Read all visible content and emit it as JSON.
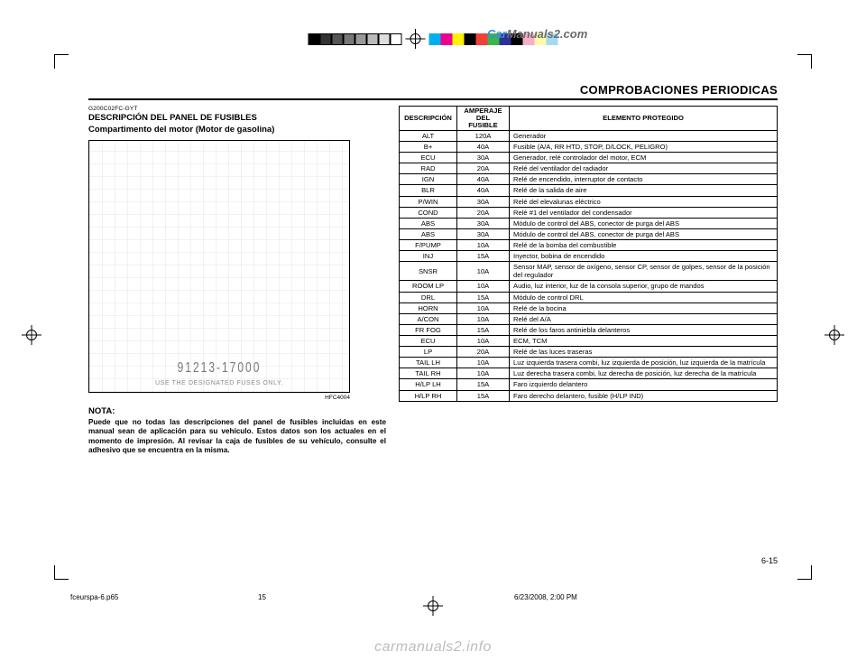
{
  "section_title": "COMPROBACIONES PERIODICAS",
  "code": "G200C02FC-GYT",
  "heading1": "DESCRIPCIÓN DEL PANEL DE FUSIBLES",
  "heading2": "Compartimento del motor (Motor de gasolina)",
  "figure_caption": "HFC4004",
  "diagram": {
    "part_number": "91213-17000",
    "caption": "USE THE DESIGNATED FUSES ONLY."
  },
  "nota_heading": "NOTA:",
  "nota_body": "Puede que no todas las descripciones del panel de fusibles incluidas en este manual sean de aplicación para su vehículo. Estos datos son los actuales en el momento de impresión. Al revisar la caja de fusibles de su vehículo, consulte el adhesivo que se encuentra en la misma.",
  "table": {
    "columns": [
      "DESCRIPCIÓN",
      "AMPERAJE DEL FUSIBLE",
      "ELEMENTO PROTEGIDO"
    ],
    "rows": [
      [
        "ALT",
        "120A",
        "Generador"
      ],
      [
        "B+",
        "40A",
        "Fusible (A/A, RR HTD, STOP, D/LOCK, PELIGRO)"
      ],
      [
        "ECU",
        "30A",
        "Generador, relé controlador del motor, ECM"
      ],
      [
        "RAD",
        "20A",
        "Relé del ventilador del radiador"
      ],
      [
        "IGN",
        "40A",
        "Relé de encendido, interruptor de contacto"
      ],
      [
        "BLR",
        "40A",
        "Relé de la salida de aire"
      ],
      [
        "P/WIN",
        "30A",
        "Relé del elevalunas eléctrico"
      ],
      [
        "COND",
        "20A",
        "Relé #1 del ventilador del condensador"
      ],
      [
        "ABS",
        "30A",
        "Módulo de control del ABS, conector de purga del ABS"
      ],
      [
        "ABS",
        "30A",
        "Módulo de control del ABS, conector de purga del ABS"
      ],
      [
        "F/PUMP",
        "10A",
        "Relé de la bomba del combustible"
      ],
      [
        "INJ",
        "15A",
        "Inyector, bobina de encendido"
      ],
      [
        "SNSR",
        "10A",
        "Sensor MAP, sensor de oxígeno, sensor CP, sensor de golpes, sensor de la posición del regulador"
      ],
      [
        "ROOM LP",
        "10A",
        "Audio, luz interior, luz de la consola superior, grupo de mandos"
      ],
      [
        "DRL",
        "15A",
        "Módulo de control DRL"
      ],
      [
        "HORN",
        "10A",
        "Relé de la bocina"
      ],
      [
        "A/CON",
        "10A",
        "Relé del A/A"
      ],
      [
        "FR FOG",
        "15A",
        "Relé de los faros antiniebla delanteros"
      ],
      [
        "ECU",
        "10A",
        "ECM, TCM"
      ],
      [
        "LP",
        "20A",
        "Relé de las luces traseras"
      ],
      [
        "TAIL LH",
        "10A",
        "Luz izquierda trasera combi, luz izquierda de posición, luz izquierda de la matrícula"
      ],
      [
        "TAIL RH",
        "10A",
        "Luz derecha trasera combi, luz derecha de posición, luz derecha de la matrícula"
      ],
      [
        "H/LP LH",
        "15A",
        "Faro izquierdo delantero"
      ],
      [
        "H/LP RH",
        "15A",
        "Faro derecho delantero, fusible (H/LP IND)"
      ]
    ]
  },
  "page_number": "6-15",
  "footer": {
    "file": "fceurspa-6.p65",
    "page": "15",
    "timestamp": "6/23/2008, 2:00 PM"
  },
  "watermark_top": {
    "part1": "Car",
    "part2": "Manuals2.com",
    "color1": "#3a8dde",
    "color2": "#6b6b6b"
  },
  "watermark_bottom": {
    "text": "carmanuals2.info",
    "color": "#bdbdbd"
  },
  "grayscale_swatches": [
    "#000000",
    "#333333",
    "#555555",
    "#777777",
    "#999999",
    "#bbbbbb",
    "#dddddd",
    "#ffffff"
  ],
  "color_swatches": [
    "#00aeef",
    "#ec008c",
    "#fff200",
    "#000000",
    "#ef4136",
    "#39b54a",
    "#2e3192",
    "#000000",
    "#f7adc8",
    "#fffbaa",
    "#a3d9f5"
  ]
}
